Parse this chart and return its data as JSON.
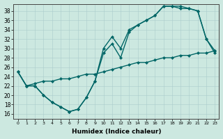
{
  "xlabel": "Humidex (Indice chaleur)",
  "bg_color": "#cce8e0",
  "line_color": "#006666",
  "marker": "D",
  "marker_size": 2.2,
  "line_width": 1.0,
  "xlim": [
    -0.5,
    23.5
  ],
  "ylim": [
    15.0,
    39.5
  ],
  "xticks": [
    0,
    1,
    2,
    3,
    4,
    5,
    6,
    7,
    8,
    9,
    10,
    11,
    12,
    13,
    14,
    15,
    16,
    17,
    18,
    19,
    20,
    21,
    22,
    23
  ],
  "yticks": [
    16,
    18,
    20,
    22,
    24,
    26,
    28,
    30,
    32,
    34,
    36,
    38
  ],
  "series1": [
    [
      0,
      25
    ],
    [
      1,
      22
    ],
    [
      2,
      22
    ],
    [
      3,
      20
    ],
    [
      4,
      18.5
    ],
    [
      5,
      17.5
    ],
    [
      6,
      16.5
    ],
    [
      7,
      17
    ],
    [
      8,
      19.5
    ],
    [
      9,
      23
    ],
    [
      10,
      30
    ],
    [
      11,
      32.5
    ],
    [
      12,
      30
    ],
    [
      13,
      34
    ],
    [
      14,
      35
    ],
    [
      15,
      36
    ],
    [
      16,
      37
    ],
    [
      17,
      39
    ],
    [
      18,
      39
    ],
    [
      19,
      39
    ],
    [
      20,
      38.5
    ],
    [
      21,
      38
    ],
    [
      22,
      32
    ],
    [
      23,
      29
    ]
  ],
  "series2": [
    [
      0,
      25
    ],
    [
      1,
      22
    ],
    [
      2,
      22
    ],
    [
      3,
      20
    ],
    [
      4,
      18.5
    ],
    [
      5,
      17.5
    ],
    [
      6,
      16.5
    ],
    [
      7,
      17
    ],
    [
      8,
      19.5
    ],
    [
      9,
      23
    ],
    [
      10,
      29
    ],
    [
      11,
      31
    ],
    [
      12,
      28
    ],
    [
      13,
      33.5
    ],
    [
      14,
      35
    ],
    [
      15,
      36
    ],
    [
      16,
      37
    ],
    [
      17,
      39
    ],
    [
      18,
      39
    ],
    [
      19,
      38.5
    ],
    [
      20,
      38.5
    ],
    [
      21,
      38
    ],
    [
      22,
      32
    ],
    [
      23,
      29.5
    ]
  ],
  "series3": [
    [
      0,
      25
    ],
    [
      1,
      22
    ],
    [
      2,
      22.5
    ],
    [
      3,
      23
    ],
    [
      4,
      23
    ],
    [
      5,
      23.5
    ],
    [
      6,
      23.5
    ],
    [
      7,
      24
    ],
    [
      8,
      24.5
    ],
    [
      9,
      24.5
    ],
    [
      10,
      25
    ],
    [
      11,
      25.5
    ],
    [
      12,
      26
    ],
    [
      13,
      26.5
    ],
    [
      14,
      27
    ],
    [
      15,
      27
    ],
    [
      16,
      27.5
    ],
    [
      17,
      28
    ],
    [
      18,
      28
    ],
    [
      19,
      28.5
    ],
    [
      20,
      28.5
    ],
    [
      21,
      29
    ],
    [
      22,
      29
    ],
    [
      23,
      29.5
    ]
  ]
}
